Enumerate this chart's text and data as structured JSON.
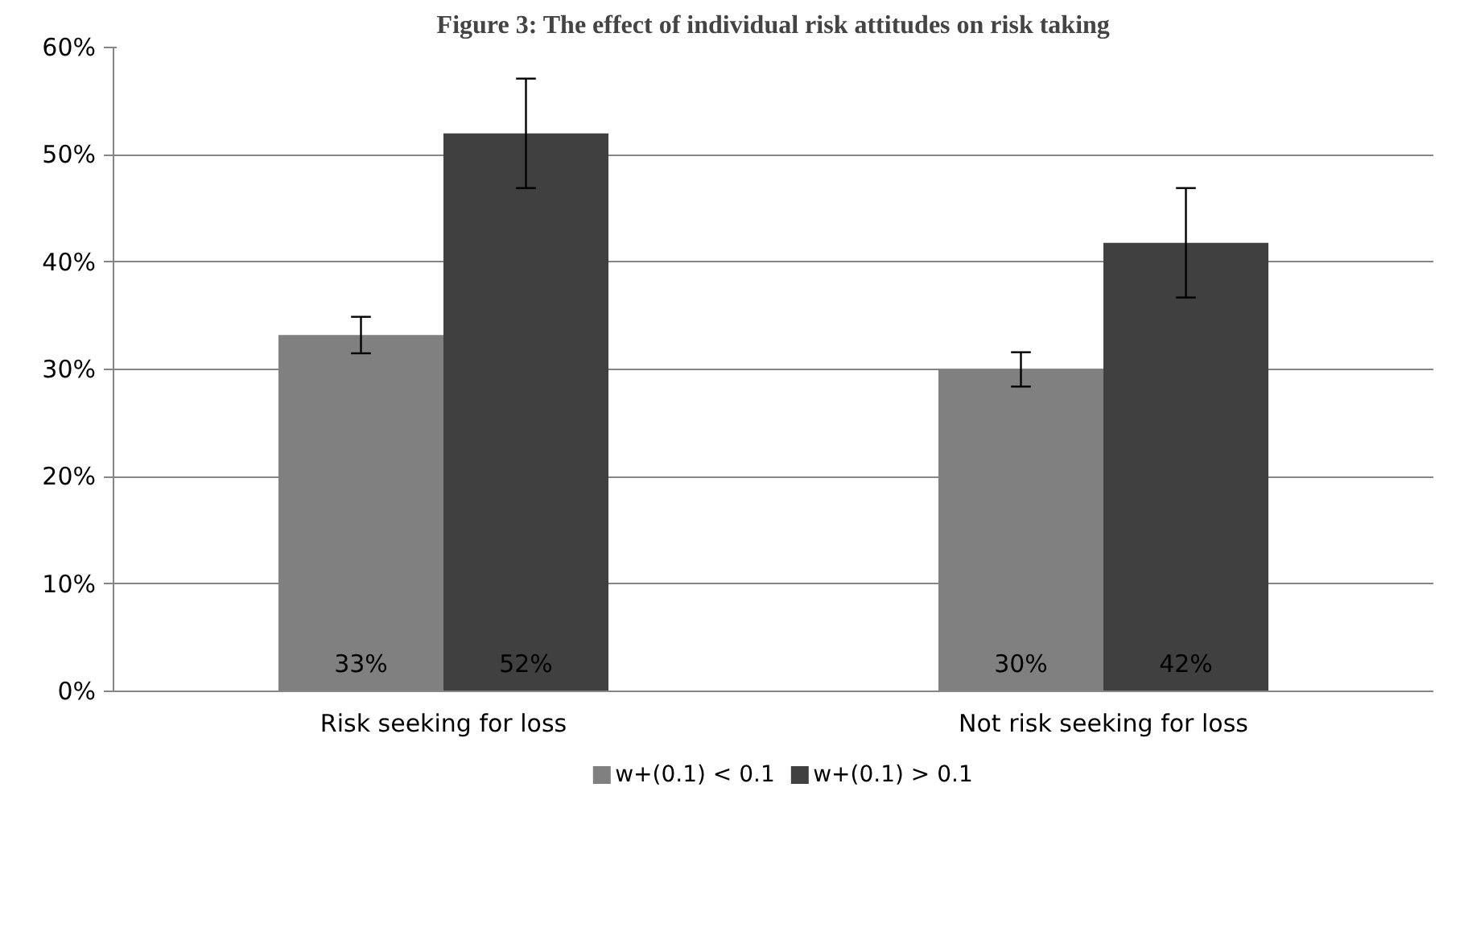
{
  "chart_data": {
    "type": "bar",
    "title": "Figure 3: The effect of individual risk attitudes on risk taking",
    "categories": [
      "Risk seeking for loss",
      "Not risk seeking for loss"
    ],
    "series": [
      {
        "name": "w+(0.1) < 0.1",
        "color": "#808080",
        "values": [
          33.2,
          30.0
        ],
        "errors": [
          1.7,
          1.6
        ],
        "value_labels": [
          "33%",
          "30%"
        ]
      },
      {
        "name": "w+(0.1) > 0.1",
        "color": "#404040",
        "values": [
          52.0,
          41.8
        ],
        "errors": [
          5.1,
          5.1
        ],
        "value_labels": [
          "52%",
          "42%"
        ]
      }
    ],
    "ylim": [
      0,
      60
    ],
    "yticks": [
      {
        "value": 0,
        "label": "0%"
      },
      {
        "value": 10,
        "label": "10%"
      },
      {
        "value": 20,
        "label": "20%"
      },
      {
        "value": 30,
        "label": "30%"
      },
      {
        "value": 40,
        "label": "40%"
      },
      {
        "value": 50,
        "label": "50%"
      },
      {
        "value": 60,
        "label": "60%"
      }
    ],
    "grid": "y",
    "legend": "bottom"
  }
}
